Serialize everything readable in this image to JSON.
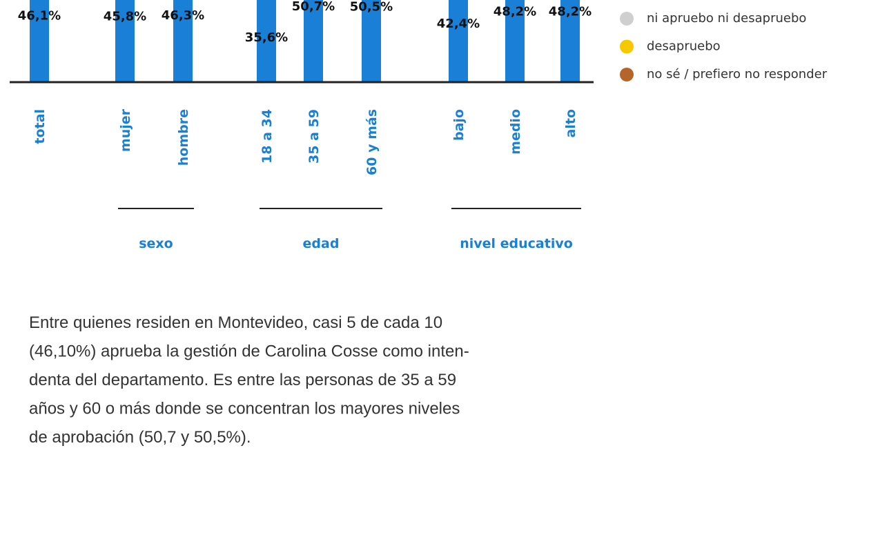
{
  "chart_data": {
    "type": "bar",
    "categories": [
      "total",
      "mujer",
      "hombre",
      "18 a 34",
      "35 a 59",
      "60 y más",
      "bajo",
      "medio",
      "alto"
    ],
    "values": [
      46.1,
      45.8,
      46.3,
      35.6,
      50.7,
      50.5,
      42.4,
      48.2,
      48.2
    ],
    "value_labels": [
      "46,1%",
      "45,8%",
      "46,3%",
      "35,6%",
      "50,7%",
      "50,5%",
      "42,4%",
      "48,2%",
      "48,2%"
    ],
    "color": "#1a7fd6",
    "ylim": [
      0,
      55
    ],
    "groups": [
      {
        "name": "sexo",
        "from": 1,
        "to": 2
      },
      {
        "name": "edad",
        "from": 3,
        "to": 5
      },
      {
        "name": "nivel educativo",
        "from": 6,
        "to": 8
      }
    ],
    "legend": [
      {
        "name": "ni apruebo ni desapruebo",
        "color": "#cfcfcf"
      },
      {
        "name": "desapruebo",
        "color": "#f5c800"
      },
      {
        "name": "no sé / prefiero no responder",
        "color": "#b5652a"
      }
    ]
  },
  "text": {
    "lines": [
      "Entre quienes residen en Montevideo, casi 5 de cada 10",
      "(46,10%) aprueba la gestión de Carolina Cosse como inten-",
      "denta del departamento. Es entre las personas de 35 a 59",
      "años y 60 o más donde se concentran los mayores niveles",
      "de aprobación (50,7 y 50,5%)."
    ]
  }
}
